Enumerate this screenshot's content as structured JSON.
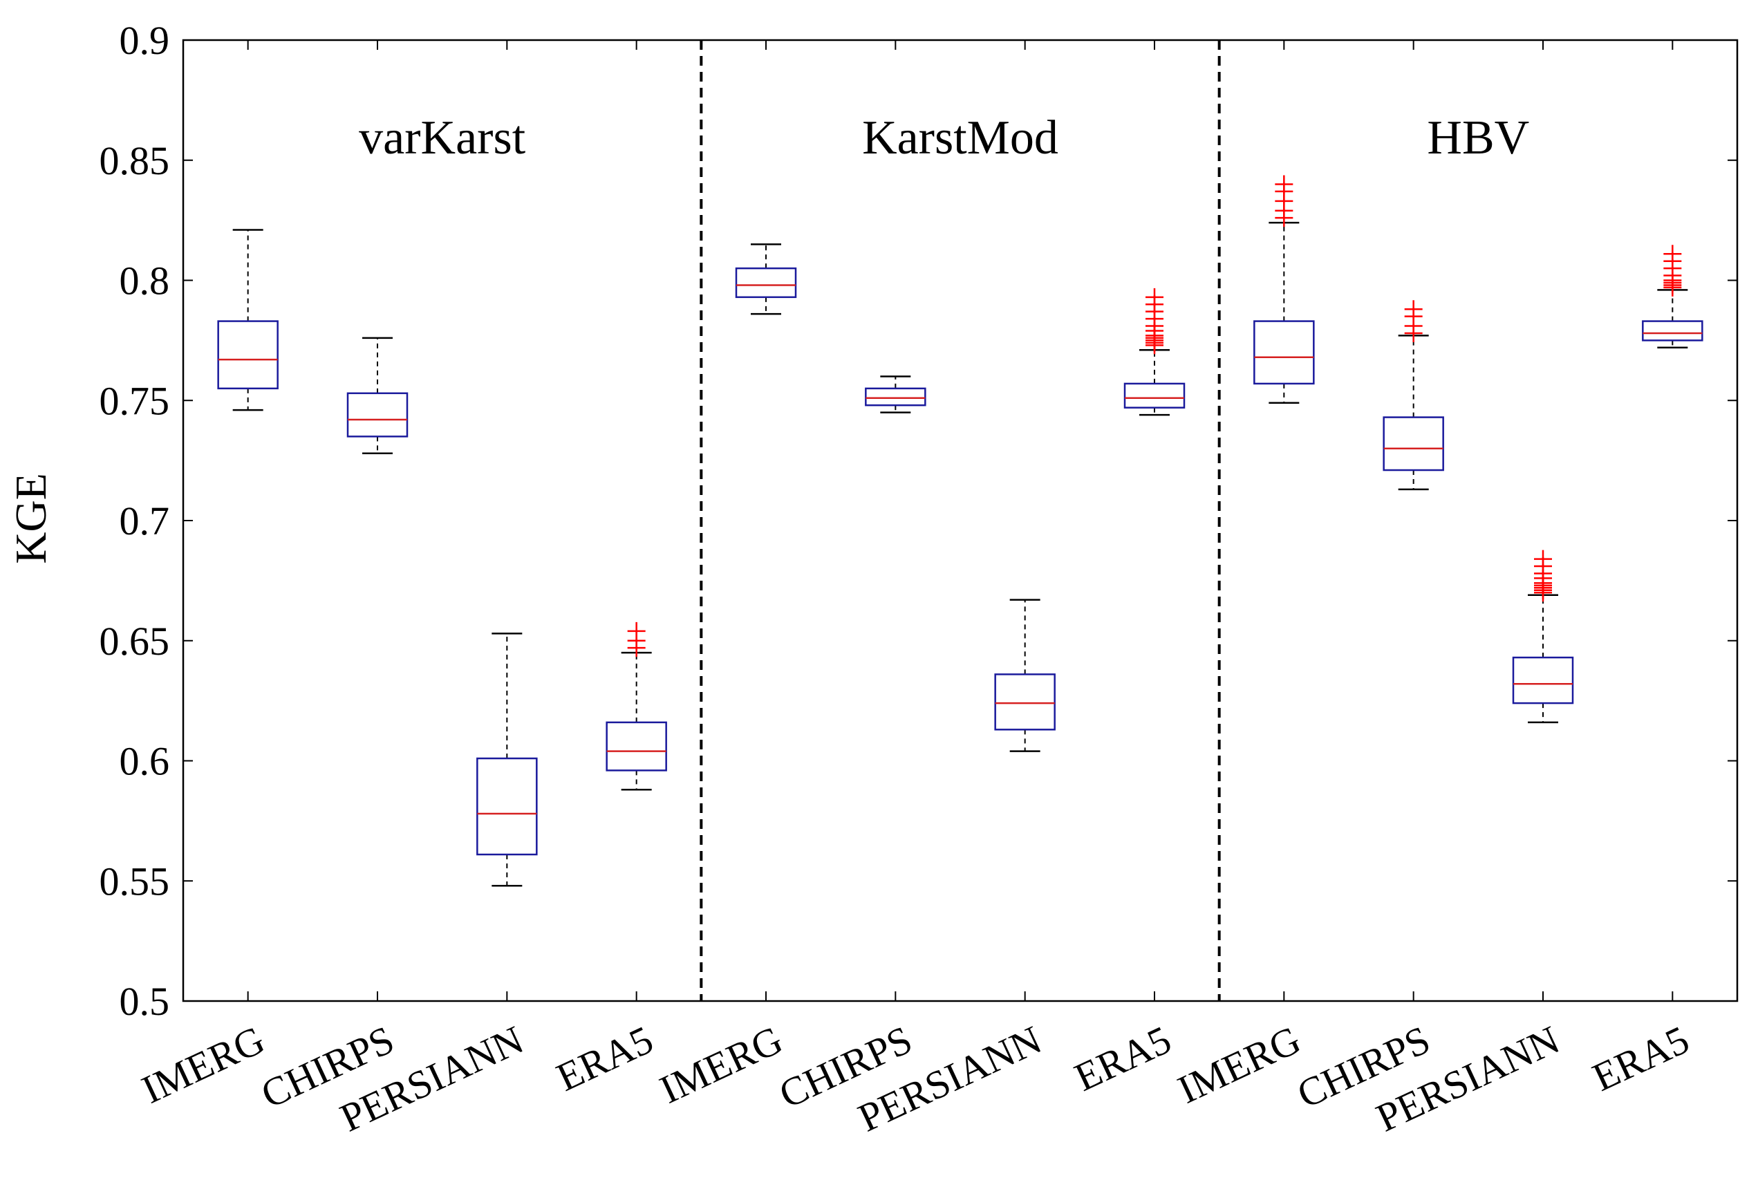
{
  "chart_data": {
    "type": "box",
    "ylabel": "KGE",
    "ylim": [
      0.5,
      0.9
    ],
    "yticks": [
      0.5,
      0.55,
      0.6,
      0.65,
      0.7,
      0.75,
      0.8,
      0.85,
      0.9
    ],
    "ytick_labels": [
      "0.5",
      "0.55",
      "0.6",
      "0.65",
      "0.7",
      "0.75",
      "0.8",
      "0.85",
      "0.9"
    ],
    "categories": [
      "IMERG",
      "CHIRPS",
      "PERSIANN",
      "ERA5",
      "IMERG",
      "CHIRPS",
      "PERSIANN",
      "ERA5",
      "IMERG",
      "CHIRPS",
      "PERSIANN",
      "ERA5"
    ],
    "groups": [
      {
        "label": "varKarst",
        "span": [
          0,
          3
        ]
      },
      {
        "label": "KarstMod",
        "span": [
          4,
          7
        ]
      },
      {
        "label": "HBV",
        "span": [
          8,
          11
        ]
      }
    ],
    "colors": {
      "box": "#1a1a9c",
      "median": "#d62020",
      "whisker": "#000000",
      "outlier": "#ff0000",
      "separator": "#000000"
    },
    "boxes": [
      {
        "category": "IMERG",
        "group": "varKarst",
        "whisker_low": 0.746,
        "q1": 0.755,
        "median": 0.767,
        "q3": 0.783,
        "whisker_high": 0.821,
        "outliers": []
      },
      {
        "category": "CHIRPS",
        "group": "varKarst",
        "whisker_low": 0.728,
        "q1": 0.735,
        "median": 0.742,
        "q3": 0.753,
        "whisker_high": 0.776,
        "outliers": []
      },
      {
        "category": "PERSIANN",
        "group": "varKarst",
        "whisker_low": 0.548,
        "q1": 0.561,
        "median": 0.578,
        "q3": 0.601,
        "whisker_high": 0.653,
        "outliers": []
      },
      {
        "category": "ERA5",
        "group": "varKarst",
        "whisker_low": 0.588,
        "q1": 0.596,
        "median": 0.604,
        "q3": 0.616,
        "whisker_high": 0.645,
        "outliers": [
          0.647,
          0.65,
          0.654
        ]
      },
      {
        "category": "IMERG",
        "group": "KarstMod",
        "whisker_low": 0.786,
        "q1": 0.793,
        "median": 0.798,
        "q3": 0.805,
        "whisker_high": 0.815,
        "outliers": []
      },
      {
        "category": "CHIRPS",
        "group": "KarstMod",
        "whisker_low": 0.745,
        "q1": 0.748,
        "median": 0.751,
        "q3": 0.755,
        "whisker_high": 0.76,
        "outliers": []
      },
      {
        "category": "PERSIANN",
        "group": "KarstMod",
        "whisker_low": 0.604,
        "q1": 0.613,
        "median": 0.624,
        "q3": 0.636,
        "whisker_high": 0.667,
        "outliers": []
      },
      {
        "category": "ERA5",
        "group": "KarstMod",
        "whisker_low": 0.744,
        "q1": 0.747,
        "median": 0.751,
        "q3": 0.757,
        "whisker_high": 0.771,
        "outliers": [
          0.773,
          0.774,
          0.775,
          0.776,
          0.777,
          0.779,
          0.781,
          0.784,
          0.787,
          0.79,
          0.793
        ]
      },
      {
        "category": "IMERG",
        "group": "HBV",
        "whisker_low": 0.749,
        "q1": 0.757,
        "median": 0.768,
        "q3": 0.783,
        "whisker_high": 0.824,
        "outliers": [
          0.826,
          0.829,
          0.833,
          0.837,
          0.84
        ]
      },
      {
        "category": "CHIRPS",
        "group": "HBV",
        "whisker_low": 0.713,
        "q1": 0.721,
        "median": 0.73,
        "q3": 0.743,
        "whisker_high": 0.777,
        "outliers": [
          0.778,
          0.781,
          0.785,
          0.788
        ]
      },
      {
        "category": "PERSIANN",
        "group": "HBV",
        "whisker_low": 0.616,
        "q1": 0.624,
        "median": 0.632,
        "q3": 0.643,
        "whisker_high": 0.669,
        "outliers": [
          0.67,
          0.671,
          0.672,
          0.673,
          0.674,
          0.676,
          0.678,
          0.681,
          0.684
        ]
      },
      {
        "category": "ERA5",
        "group": "HBV",
        "whisker_low": 0.772,
        "q1": 0.775,
        "median": 0.778,
        "q3": 0.783,
        "whisker_high": 0.796,
        "outliers": [
          0.797,
          0.798,
          0.799,
          0.8,
          0.802,
          0.805,
          0.808,
          0.811
        ]
      }
    ]
  }
}
